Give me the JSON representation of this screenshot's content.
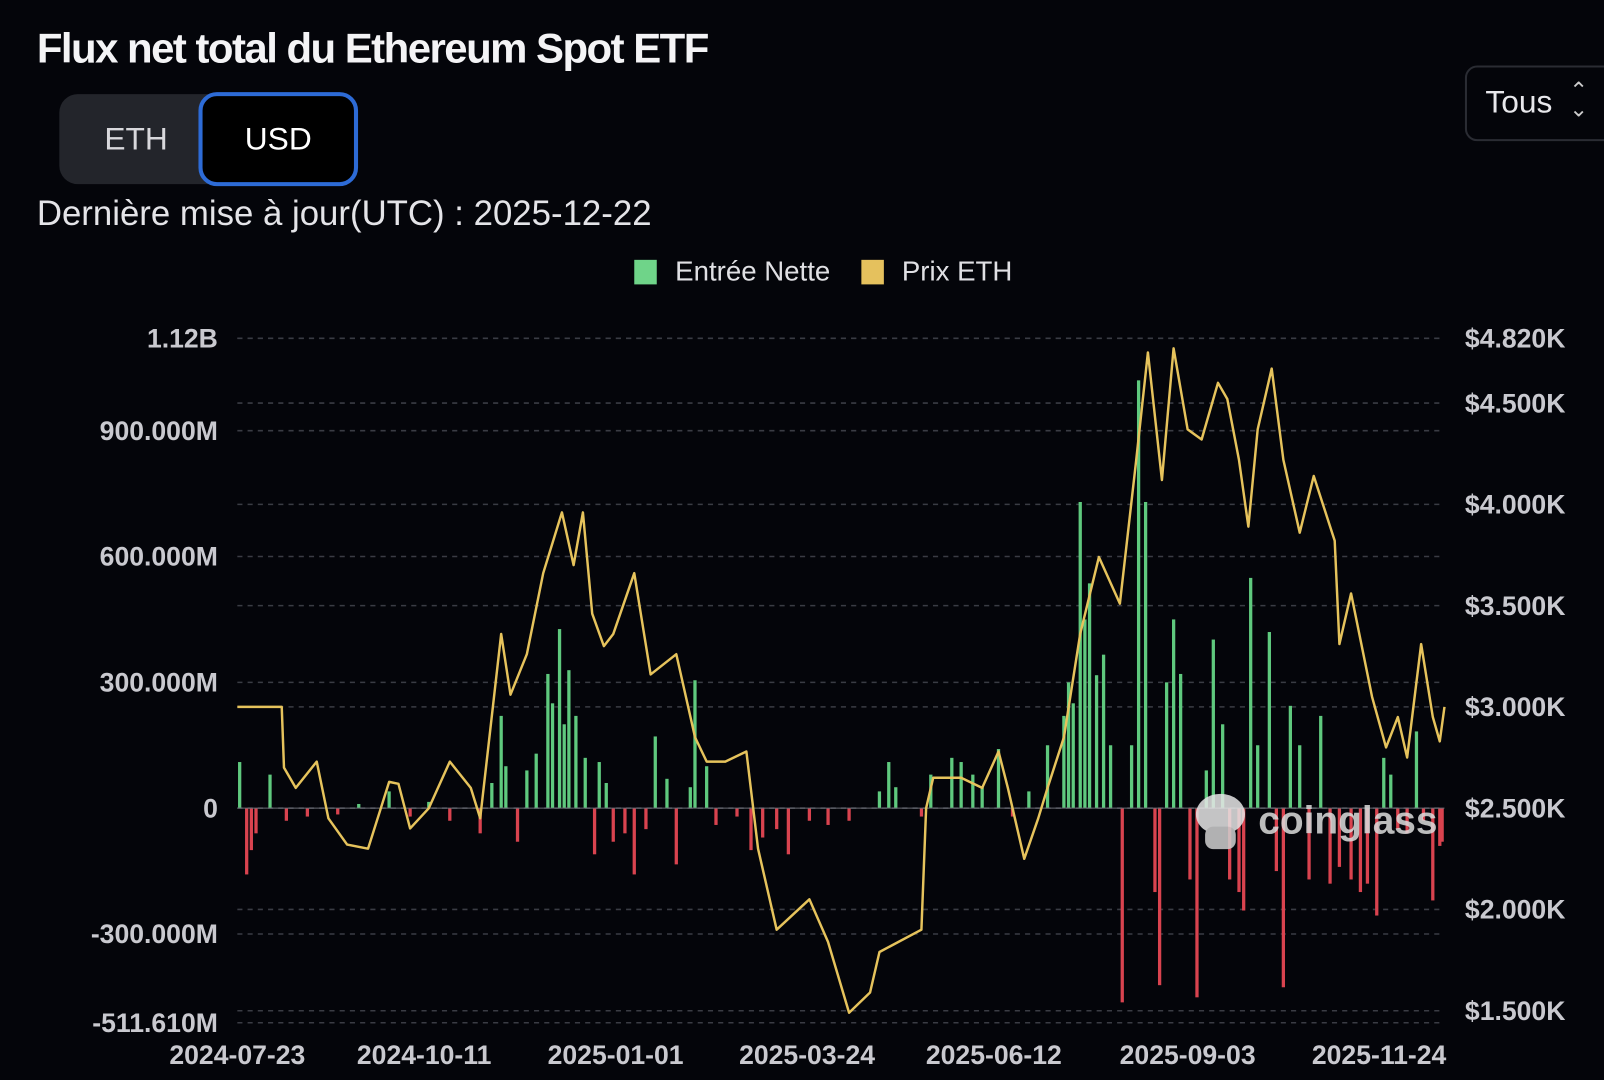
{
  "header": {
    "title": "Flux net total du Ethereum Spot ETF",
    "toggle": [
      "ETH",
      "USD"
    ],
    "active_toggle": "USD",
    "updated": "Dernière mise à jour(UTC) : 2025-12-22",
    "range_select": "Tous",
    "range_icon": "chevron-up-down-icon"
  },
  "watermark": "coinglass",
  "colors": {
    "inflow": "#5fc97e",
    "outflow": "#d9434f",
    "price": "#e6c35c",
    "grid": "#3a3c44",
    "legend_inflow": "#6fd489",
    "legend_price": "#e5c15d"
  },
  "chart_data": {
    "type": "bar+line",
    "legend_position": "top-center",
    "grid": true,
    "legend": [
      "Entrée Nette",
      "Prix ETH"
    ],
    "x_ticks": [
      "2024-07-23",
      "2024-10-11",
      "2025-01-01",
      "2025-03-24",
      "2025-06-12",
      "2025-09-03",
      "2025-11-24"
    ],
    "x_range": [
      "2024-07-23",
      "2025-12-22"
    ],
    "y_left": {
      "ticks": [
        "1.12B",
        "900.000M",
        "600.000M",
        "300.000M",
        "0",
        "-300.000M",
        "-511.610M"
      ],
      "tick_values": [
        1120,
        900,
        600,
        300,
        0,
        -300,
        -511.61
      ],
      "range": [
        -511.61,
        1120
      ],
      "unit": "M USD"
    },
    "y_right": {
      "ticks": [
        "$4.820K",
        "$4.500K",
        "$4.000K",
        "$3.500K",
        "$3.000K",
        "$2.500K",
        "$2.000K",
        "$1.500K"
      ],
      "tick_values": [
        4820,
        4500,
        4000,
        3500,
        3000,
        2500,
        2000,
        1500
      ],
      "range": [
        1500,
        4820
      ]
    },
    "series": [
      {
        "name": "Entrée Nette",
        "type": "bar",
        "points": [
          [
            "2024-07-24",
            110
          ],
          [
            "2024-07-27",
            -158
          ],
          [
            "2024-07-29",
            -100
          ],
          [
            "2024-07-31",
            -60
          ],
          [
            "2024-08-06",
            80
          ],
          [
            "2024-08-13",
            -30
          ],
          [
            "2024-08-22",
            -20
          ],
          [
            "2024-09-04",
            -15
          ],
          [
            "2024-09-13",
            10
          ],
          [
            "2024-09-26",
            40
          ],
          [
            "2024-10-05",
            -20
          ],
          [
            "2024-10-13",
            15
          ],
          [
            "2024-10-22",
            -30
          ],
          [
            "2024-11-04",
            -60
          ],
          [
            "2024-11-09",
            60
          ],
          [
            "2024-11-13",
            220
          ],
          [
            "2024-11-15",
            100
          ],
          [
            "2024-11-20",
            -80
          ],
          [
            "2024-11-24",
            90
          ],
          [
            "2024-11-28",
            130
          ],
          [
            "2024-12-03",
            320
          ],
          [
            "2024-12-05",
            250
          ],
          [
            "2024-12-08",
            427
          ],
          [
            "2024-12-10",
            200
          ],
          [
            "2024-12-12",
            329
          ],
          [
            "2024-12-15",
            220
          ],
          [
            "2024-12-19",
            120
          ],
          [
            "2024-12-23",
            -110
          ],
          [
            "2024-12-25",
            110
          ],
          [
            "2024-12-28",
            60
          ],
          [
            "2024-12-31",
            -80
          ],
          [
            "2025-01-05",
            -60
          ],
          [
            "2025-01-09",
            -158
          ],
          [
            "2025-01-14",
            -50
          ],
          [
            "2025-01-18",
            171
          ],
          [
            "2025-01-23",
            70
          ],
          [
            "2025-01-27",
            -134
          ],
          [
            "2025-02-02",
            50
          ],
          [
            "2025-02-04",
            305
          ],
          [
            "2025-02-09",
            100
          ],
          [
            "2025-02-13",
            -40
          ],
          [
            "2025-02-22",
            -20
          ],
          [
            "2025-02-28",
            -100
          ],
          [
            "2025-03-05",
            -70
          ],
          [
            "2025-03-11",
            -50
          ],
          [
            "2025-03-16",
            -110
          ],
          [
            "2025-03-25",
            -30
          ],
          [
            "2025-04-02",
            -40
          ],
          [
            "2025-04-11",
            -30
          ],
          [
            "2025-04-24",
            40
          ],
          [
            "2025-04-28",
            110
          ],
          [
            "2025-05-01",
            50
          ],
          [
            "2025-05-12",
            -20
          ],
          [
            "2025-05-16",
            80
          ],
          [
            "2025-05-25",
            120
          ],
          [
            "2025-05-29",
            110
          ],
          [
            "2025-06-03",
            80
          ],
          [
            "2025-06-07",
            50
          ],
          [
            "2025-06-14",
            141
          ],
          [
            "2025-06-20",
            -20
          ],
          [
            "2025-06-27",
            40
          ],
          [
            "2025-07-05",
            150
          ],
          [
            "2025-07-12",
            220
          ],
          [
            "2025-07-14",
            300
          ],
          [
            "2025-07-16",
            250
          ],
          [
            "2025-07-19",
            730
          ],
          [
            "2025-07-21",
            450
          ],
          [
            "2025-07-23",
            536
          ],
          [
            "2025-07-26",
            317
          ],
          [
            "2025-07-29",
            366
          ],
          [
            "2025-08-01",
            150
          ],
          [
            "2025-08-06",
            -463
          ],
          [
            "2025-08-10",
            150
          ],
          [
            "2025-08-13",
            1020
          ],
          [
            "2025-08-16",
            730
          ],
          [
            "2025-08-20",
            -200
          ],
          [
            "2025-08-22",
            -422
          ],
          [
            "2025-08-25",
            300
          ],
          [
            "2025-08-28",
            450
          ],
          [
            "2025-08-31",
            320
          ],
          [
            "2025-09-04",
            -170
          ],
          [
            "2025-09-07",
            -451
          ],
          [
            "2025-09-11",
            90
          ],
          [
            "2025-09-14",
            402
          ],
          [
            "2025-09-18",
            200
          ],
          [
            "2025-09-21",
            -170
          ],
          [
            "2025-09-25",
            -200
          ],
          [
            "2025-09-27",
            -244
          ],
          [
            "2025-09-30",
            549
          ],
          [
            "2025-10-03",
            150
          ],
          [
            "2025-10-08",
            420
          ],
          [
            "2025-10-11",
            -150
          ],
          [
            "2025-10-14",
            -427
          ],
          [
            "2025-10-17",
            244
          ],
          [
            "2025-10-21",
            150
          ],
          [
            "2025-10-25",
            -170
          ],
          [
            "2025-10-30",
            220
          ],
          [
            "2025-11-03",
            -180
          ],
          [
            "2025-11-07",
            -140
          ],
          [
            "2025-11-12",
            -170
          ],
          [
            "2025-11-16",
            -200
          ],
          [
            "2025-11-19",
            -180
          ],
          [
            "2025-11-23",
            -256
          ],
          [
            "2025-11-26",
            120
          ],
          [
            "2025-11-29",
            80
          ],
          [
            "2025-12-02",
            -50
          ],
          [
            "2025-12-06",
            -60
          ],
          [
            "2025-12-10",
            183
          ],
          [
            "2025-12-13",
            -30
          ],
          [
            "2025-12-17",
            -220
          ],
          [
            "2025-12-20",
            -90
          ],
          [
            "2025-12-21",
            -80
          ]
        ]
      },
      {
        "name": "Prix ETH",
        "type": "line",
        "axis": "right",
        "points": [
          [
            "2024-07-23",
            3000
          ],
          [
            "2024-08-11",
            3000
          ],
          [
            "2024-08-12",
            2700
          ],
          [
            "2024-08-17",
            2600
          ],
          [
            "2024-08-26",
            2730
          ],
          [
            "2024-08-31",
            2450
          ],
          [
            "2024-09-08",
            2320
          ],
          [
            "2024-09-17",
            2300
          ],
          [
            "2024-09-26",
            2630
          ],
          [
            "2024-09-30",
            2620
          ],
          [
            "2024-10-05",
            2400
          ],
          [
            "2024-10-13",
            2500
          ],
          [
            "2024-10-22",
            2730
          ],
          [
            "2024-10-31",
            2600
          ],
          [
            "2024-11-04",
            2450
          ],
          [
            "2024-11-13",
            3360
          ],
          [
            "2024-11-17",
            3060
          ],
          [
            "2024-11-24",
            3260
          ],
          [
            "2024-12-01",
            3660
          ],
          [
            "2024-12-09",
            3960
          ],
          [
            "2024-12-14",
            3700
          ],
          [
            "2024-12-18",
            3960
          ],
          [
            "2024-12-22",
            3460
          ],
          [
            "2024-12-27",
            3300
          ],
          [
            "2024-12-31",
            3360
          ],
          [
            "2025-01-09",
            3660
          ],
          [
            "2025-01-16",
            3160
          ],
          [
            "2025-01-27",
            3260
          ],
          [
            "2025-02-04",
            2850
          ],
          [
            "2025-02-09",
            2730
          ],
          [
            "2025-02-17",
            2730
          ],
          [
            "2025-02-26",
            2780
          ],
          [
            "2025-03-03",
            2300
          ],
          [
            "2025-03-11",
            1900
          ],
          [
            "2025-03-25",
            2050
          ],
          [
            "2025-04-02",
            1840
          ],
          [
            "2025-04-11",
            1490
          ],
          [
            "2025-04-20",
            1590
          ],
          [
            "2025-04-24",
            1790
          ],
          [
            "2025-05-12",
            1900
          ],
          [
            "2025-05-14",
            2500
          ],
          [
            "2025-05-17",
            2650
          ],
          [
            "2025-05-29",
            2650
          ],
          [
            "2025-06-07",
            2600
          ],
          [
            "2025-06-14",
            2780
          ],
          [
            "2025-06-18",
            2600
          ],
          [
            "2025-06-25",
            2250
          ],
          [
            "2025-07-01",
            2450
          ],
          [
            "2025-07-05",
            2600
          ],
          [
            "2025-07-12",
            2850
          ],
          [
            "2025-07-19",
            3360
          ],
          [
            "2025-07-27",
            3740
          ],
          [
            "2025-08-05",
            3510
          ],
          [
            "2025-08-12",
            4220
          ],
          [
            "2025-08-17",
            4750
          ],
          [
            "2025-08-23",
            4120
          ],
          [
            "2025-08-28",
            4770
          ],
          [
            "2025-09-03",
            4370
          ],
          [
            "2025-09-09",
            4320
          ],
          [
            "2025-09-16",
            4600
          ],
          [
            "2025-09-20",
            4520
          ],
          [
            "2025-09-25",
            4220
          ],
          [
            "2025-09-29",
            3890
          ],
          [
            "2025-10-03",
            4370
          ],
          [
            "2025-10-09",
            4670
          ],
          [
            "2025-10-14",
            4220
          ],
          [
            "2025-10-21",
            3860
          ],
          [
            "2025-10-27",
            4140
          ],
          [
            "2025-11-05",
            3820
          ],
          [
            "2025-11-07",
            3310
          ],
          [
            "2025-11-12",
            3560
          ],
          [
            "2025-11-21",
            3050
          ],
          [
            "2025-11-27",
            2800
          ],
          [
            "2025-12-02",
            2950
          ],
          [
            "2025-12-06",
            2750
          ],
          [
            "2025-12-12",
            3310
          ],
          [
            "2025-12-17",
            2950
          ],
          [
            "2025-12-20",
            2830
          ],
          [
            "2025-12-22",
            3000
          ]
        ]
      }
    ]
  }
}
